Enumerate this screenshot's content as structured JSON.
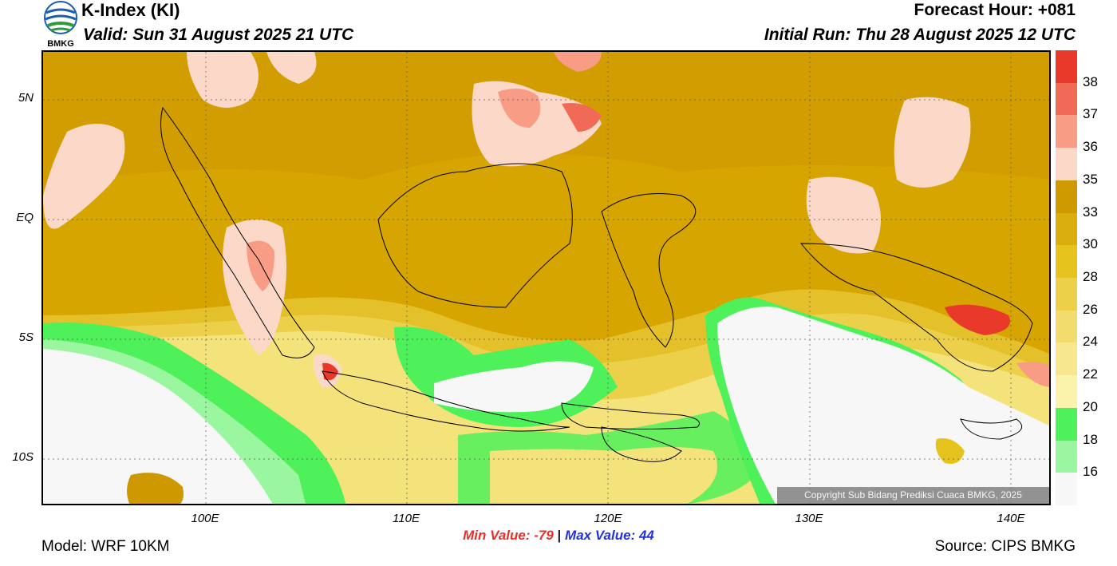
{
  "header": {
    "title": "K-Index (KI)",
    "valid": "Valid: Sun 31 August 2025 21 UTC",
    "forecast_hour": "Forecast Hour: +081",
    "initial_run": "Initial Run: Thu 28 August 2025 12 UTC"
  },
  "logo": {
    "text": "BMKG",
    "icon": "bmkg-globe-icon"
  },
  "map": {
    "lat_labels": [
      "5N",
      "EQ",
      "5S",
      "10S"
    ],
    "lon_labels": [
      "100E",
      "110E",
      "120E",
      "130E",
      "140E"
    ],
    "copyright": "Copyright Sub Bidang Prediksi Cuaca BMKG, 2025"
  },
  "colorbar": {
    "labels": [
      "38",
      "37",
      "36",
      "35",
      "33",
      "30",
      "28",
      "26",
      "24",
      "22",
      "20",
      "18",
      "16"
    ],
    "colors": [
      "#e8392a",
      "#f06a55",
      "#f89c86",
      "#fcd8c8",
      "#cf9a00",
      "#d9ad0c",
      "#e6c21d",
      "#ecd048",
      "#f2dc6e",
      "#f7e890",
      "#fbf2ab",
      "#4ff15a",
      "#9af69f",
      "#f7f7f7"
    ]
  },
  "stats": {
    "min": "Min Value: -79",
    "sep": "|",
    "max": "Max Value:  44"
  },
  "footer": {
    "model": "Model: WRF 10KM",
    "source": "Source: CIPS BMKG"
  }
}
